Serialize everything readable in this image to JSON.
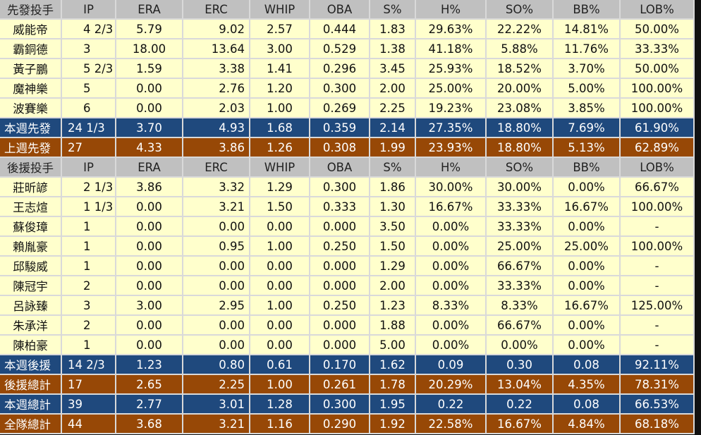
{
  "headers": {
    "starters": [
      "先發投手",
      "IP",
      "ERA",
      "ERC",
      "WHIP",
      "OBA",
      "S%",
      "H%",
      "SO%",
      "BB%",
      "LOB%"
    ],
    "relievers": [
      "後援投手",
      "IP",
      "ERA",
      "ERC",
      "WHIP",
      "OBA",
      "S%",
      "H%",
      "SO%",
      "BB%",
      "LOB%"
    ]
  },
  "starters": [
    [
      "威能帝",
      "4 2/3",
      "5.79",
      "9.02",
      "2.57",
      "0.444",
      "1.83",
      "29.63%",
      "22.22%",
      "14.81%",
      "50.00%"
    ],
    [
      "霸銅德",
      "3",
      "18.00",
      "13.64",
      "3.00",
      "0.529",
      "1.38",
      "41.18%",
      "5.88%",
      "11.76%",
      "33.33%"
    ],
    [
      "黃子鵬",
      "5 2/3",
      "1.59",
      "3.38",
      "1.41",
      "0.296",
      "3.45",
      "25.93%",
      "18.52%",
      "3.70%",
      "50.00%"
    ],
    [
      "魔神樂",
      "5",
      "0.00",
      "2.76",
      "1.20",
      "0.300",
      "2.00",
      "25.00%",
      "20.00%",
      "5.00%",
      "100.00%"
    ],
    [
      "波賽樂",
      "6",
      "0.00",
      "2.03",
      "1.00",
      "0.269",
      "2.25",
      "19.23%",
      "23.08%",
      "3.85%",
      "100.00%"
    ]
  ],
  "starter_totals": [
    {
      "style": "blue",
      "cells": [
        "本週先發",
        "24 1/3",
        "3.70",
        "4.93",
        "1.68",
        "0.359",
        "2.14",
        "27.35%",
        "18.80%",
        "7.69%",
        "61.90%"
      ]
    },
    {
      "style": "brown",
      "cells": [
        "上週先發",
        "27",
        "4.33",
        "3.86",
        "1.26",
        "0.308",
        "1.99",
        "23.93%",
        "18.80%",
        "5.13%",
        "62.89%"
      ]
    }
  ],
  "relievers": [
    [
      "莊昕諺",
      "2 1/3",
      "3.86",
      "3.32",
      "1.29",
      "0.300",
      "1.86",
      "30.00%",
      "30.00%",
      "0.00%",
      "66.67%"
    ],
    [
      "王志煊",
      "1 1/3",
      "0.00",
      "3.21",
      "1.50",
      "0.333",
      "1.30",
      "16.67%",
      "33.33%",
      "16.67%",
      "100.00%"
    ],
    [
      "蘇俊璋",
      "1",
      "0.00",
      "0.00",
      "0.00",
      "0.000",
      "3.50",
      "0.00%",
      "33.33%",
      "0.00%",
      "-"
    ],
    [
      "賴胤豪",
      "1",
      "0.00",
      "0.95",
      "1.00",
      "0.250",
      "1.50",
      "0.00%",
      "25.00%",
      "25.00%",
      "100.00%"
    ],
    [
      "邱駿威",
      "1",
      "0.00",
      "0.00",
      "0.00",
      "0.000",
      "1.29",
      "0.00%",
      "66.67%",
      "0.00%",
      "-"
    ],
    [
      "陳冠宇",
      "2",
      "0.00",
      "0.00",
      "0.00",
      "0.000",
      "2.00",
      "0.00%",
      "33.33%",
      "0.00%",
      "-"
    ],
    [
      "呂詠臻",
      "3",
      "3.00",
      "2.95",
      "1.00",
      "0.250",
      "1.23",
      "8.33%",
      "8.33%",
      "16.67%",
      "125.00%"
    ],
    [
      "朱承洋",
      "2",
      "0.00",
      "0.00",
      "0.00",
      "0.000",
      "1.88",
      "0.00%",
      "66.67%",
      "0.00%",
      "-"
    ],
    [
      "陳柏豪",
      "1",
      "0.00",
      "0.00",
      "0.00",
      "0.000",
      "5.00",
      "0.00%",
      "0.00%",
      "0.00%",
      "-"
    ]
  ],
  "reliever_totals": [
    {
      "style": "blue",
      "cells": [
        "本週後援",
        "14 2/3",
        "1.23",
        "0.80",
        "0.61",
        "0.170",
        "1.62",
        "0.09",
        "0.30",
        "0.08",
        "92.11%"
      ]
    },
    {
      "style": "brown",
      "cells": [
        "後援總計",
        "17",
        "2.65",
        "2.25",
        "1.00",
        "0.261",
        "1.78",
        "20.29%",
        "13.04%",
        "4.35%",
        "78.31%"
      ]
    },
    {
      "style": "blue",
      "cells": [
        "本週總計",
        "39",
        "2.77",
        "3.01",
        "1.28",
        "0.300",
        "1.95",
        "0.22",
        "0.22",
        "0.08",
        "66.53%"
      ]
    },
    {
      "style": "brown",
      "cells": [
        "全隊總計",
        "44",
        "3.68",
        "3.21",
        "1.16",
        "0.290",
        "1.92",
        "22.58%",
        "16.67%",
        "4.84%",
        "68.18%"
      ]
    }
  ],
  "colors": {
    "header": "#c0c0c0",
    "row": "#ffffcc",
    "blue": "#1f497d",
    "brown": "#974806"
  }
}
